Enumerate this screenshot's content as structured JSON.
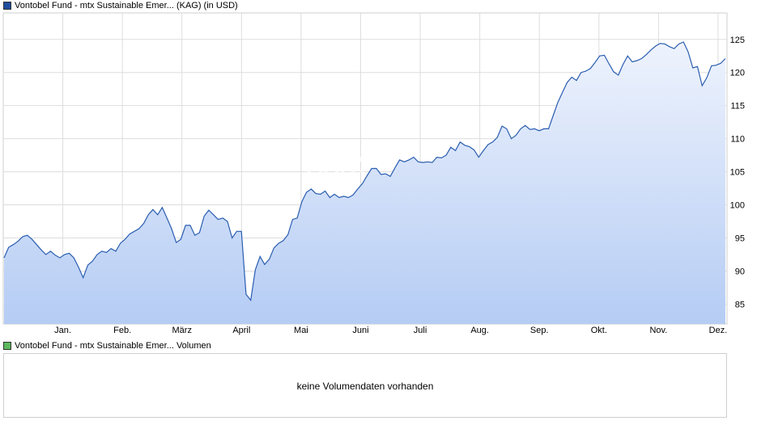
{
  "legend_price": {
    "label": "Vontobel Fund - mtx Sustainable Emer... (KAG) (in USD)",
    "color": "#1f4e9c"
  },
  "legend_volume": {
    "label": "Vontobel Fund - mtx Sustainable Emer... Volumen",
    "color": "#5cb85c"
  },
  "volume_panel": {
    "message": "keine Volumendaten vorhanden"
  },
  "watermark": "ARIVA",
  "colors": {
    "line": "#2a5db0",
    "fill_top": "#eef3fd",
    "fill_bottom": "#b5ccf4",
    "grid": "#dddddd"
  },
  "chart_data": {
    "type": "area",
    "title": "",
    "xlabel": "",
    "ylabel": "",
    "ylim": [
      82,
      129
    ],
    "y_ticks": [
      85,
      90,
      95,
      100,
      105,
      110,
      115,
      120,
      125
    ],
    "month_labels": [
      "Jan.",
      "Feb.",
      "März",
      "April",
      "Mai",
      "Juni",
      "Juli",
      "Aug.",
      "Sep.",
      "Okt.",
      "Nov.",
      "Dez."
    ],
    "grid": true,
    "series": [
      {
        "values": [
          92,
          93.6,
          94,
          94.5,
          95.2,
          95.4,
          94.8,
          94,
          93.2,
          92.5,
          93,
          92.4,
          92,
          92.5,
          92.7,
          92,
          90.6,
          89,
          90.9,
          91.5,
          92.5,
          93,
          92.8,
          93.4,
          93,
          94.2,
          94.8,
          95.6,
          96,
          96.4,
          97.2,
          98.5,
          99.3,
          98.5,
          99.6,
          98,
          96.4,
          94.3,
          94.8,
          96.9,
          96.9,
          95.4,
          95.8,
          98.3,
          99.2,
          98.5,
          97.8,
          98,
          97.5,
          95,
          96,
          96,
          86.5,
          85.6,
          90.2,
          92.2,
          91,
          91.8,
          93.5,
          94.2,
          94.6,
          95.5,
          97.8,
          98,
          100.5,
          101.9,
          102.4,
          101.7,
          101.6,
          102.1,
          101.1,
          101.6,
          101.1,
          101.3,
          101.1,
          101.5,
          102.4,
          103.2,
          104.4,
          105.5,
          105.5,
          104.6,
          104.7,
          104.3,
          105.6,
          106.8,
          106.5,
          106.8,
          107.2,
          106.5,
          106.4,
          106.5,
          106.4,
          107.2,
          107.1,
          107.5,
          108.7,
          108.2,
          109.5,
          109,
          108.8,
          108.3,
          107.2,
          108.2,
          109.1,
          109.5,
          110.2,
          111.9,
          111.5,
          110,
          110.5,
          111.5,
          112,
          111.4,
          111.5,
          111.2,
          111.5,
          111.5,
          113.5,
          115.5,
          117,
          118.5,
          119.3,
          118.8,
          120,
          120.2,
          120.6,
          121.5,
          122.5,
          122.6,
          121.3,
          120.1,
          119.6,
          121.2,
          122.5,
          121.6,
          121.8,
          122.1,
          122.7,
          123.4,
          124,
          124.4,
          124.3,
          123.9,
          123.6,
          124.3,
          124.6,
          123.1,
          120.7,
          120.9,
          118,
          119.2,
          121,
          121.1,
          121.4,
          122.1
        ]
      }
    ]
  }
}
